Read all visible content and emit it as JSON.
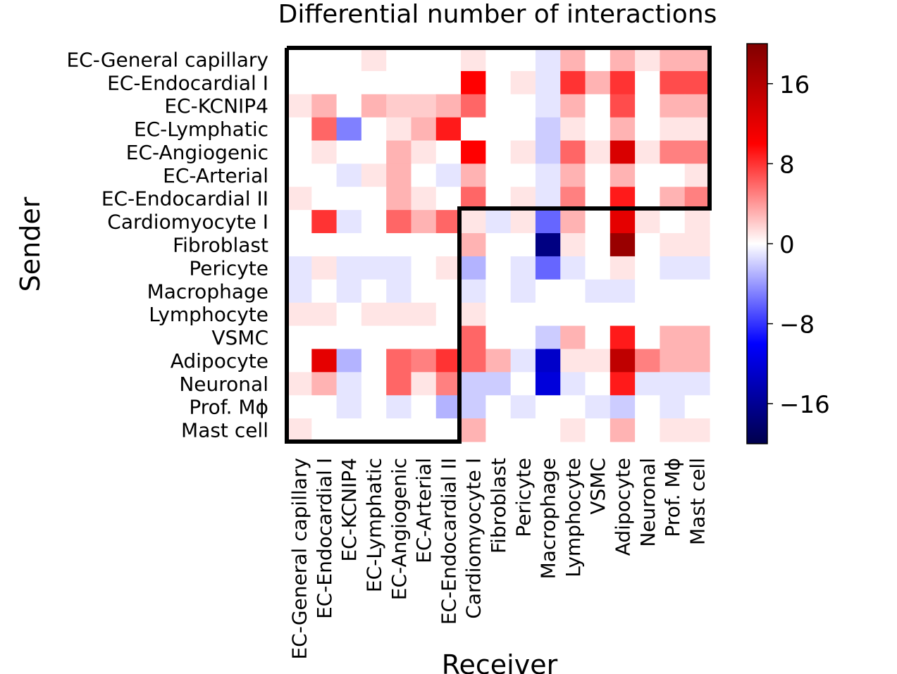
{
  "chart_data": {
    "type": "heatmap",
    "title": "Differential number of interactions",
    "ylabel": "Sender",
    "xlabel": "Receiver",
    "rows": [
      "EC-General capillary",
      "EC-Endocardial I",
      "EC-KCNIP4",
      "EC-Lymphatic",
      "EC-Angiogenic",
      "EC-Arterial",
      "EC-Endocardial II",
      "Cardiomyocyte I",
      "Fibroblast",
      "Pericyte",
      "Macrophage",
      "Lymphocyte",
      "VSMC",
      "Adipocyte",
      "Neuronal",
      "Prof. Mϕ",
      "Mast cell"
    ],
    "columns": [
      "EC-General capillary",
      "EC-Endocardial I",
      "EC-KCNIP4",
      "EC-Lymphatic",
      "EC-Angiogenic",
      "EC-Arterial",
      "EC-Endocardial II",
      "Cardiomyocyte I",
      "Fibroblast",
      "Pericyte",
      "Macrophage",
      "Lymphocyte",
      "VSMC",
      "Adipocyte",
      "Neuronal",
      "Prof. Mϕ",
      "Mast cell"
    ],
    "values": [
      [
        0,
        0,
        0,
        1,
        0,
        0,
        0,
        1,
        0,
        0,
        -1,
        3,
        0,
        3,
        1,
        3,
        3
      ],
      [
        0,
        0,
        0,
        0,
        0,
        0,
        0,
        10,
        0,
        1,
        -1,
        8,
        3,
        8,
        0,
        7,
        7
      ],
      [
        1,
        3,
        0,
        3,
        2,
        2,
        3,
        6,
        0,
        0,
        -1,
        3,
        0,
        7,
        0,
        3,
        3
      ],
      [
        0,
        6,
        -5,
        0,
        1,
        3,
        9,
        0,
        0,
        0,
        -2,
        1,
        0,
        3,
        0,
        1,
        1
      ],
      [
        0,
        1,
        0,
        0,
        3,
        1,
        0,
        10,
        0,
        1,
        -2,
        6,
        1,
        13,
        1,
        5,
        5
      ],
      [
        0,
        0,
        -1,
        1,
        3,
        0,
        -1,
        3,
        0,
        0,
        -1,
        3,
        0,
        3,
        0,
        0,
        1
      ],
      [
        1,
        0,
        0,
        0,
        3,
        1,
        0,
        6,
        0,
        1,
        -1,
        5,
        0,
        9,
        0,
        3,
        5
      ],
      [
        0,
        8,
        -1,
        0,
        6,
        3,
        6,
        1,
        -1,
        1,
        -6,
        3,
        0,
        12,
        1,
        0,
        1
      ],
      [
        0,
        0,
        0,
        0,
        0,
        0,
        0,
        3,
        0,
        0,
        -17,
        1,
        0,
        18,
        0,
        1,
        1
      ],
      [
        -1,
        1,
        -1,
        -1,
        -1,
        0,
        1,
        -3,
        0,
        -1,
        -6,
        -1,
        0,
        1,
        0,
        -1,
        -1
      ],
      [
        -1,
        0,
        -1,
        0,
        -1,
        0,
        0,
        -1,
        0,
        -1,
        0,
        0,
        -1,
        -1,
        0,
        0,
        0
      ],
      [
        1,
        1,
        0,
        1,
        1,
        1,
        0,
        1,
        0,
        0,
        0,
        0,
        0,
        0,
        0,
        0,
        0
      ],
      [
        0,
        0,
        0,
        0,
        0,
        0,
        0,
        6,
        0,
        0,
        -2,
        3,
        0,
        9,
        0,
        3,
        3
      ],
      [
        0,
        12,
        -3,
        0,
        6,
        5,
        8,
        6,
        3,
        -1,
        -13,
        1,
        1,
        15,
        5,
        3,
        3
      ],
      [
        1,
        3,
        -1,
        0,
        6,
        1,
        5,
        -2,
        -2,
        0,
        -12,
        -1,
        0,
        9,
        -1,
        -1,
        -1
      ],
      [
        0,
        0,
        -1,
        0,
        -1,
        0,
        -3,
        -2,
        0,
        -1,
        0,
        0,
        -1,
        -2,
        0,
        -1,
        0
      ],
      [
        1,
        0,
        0,
        0,
        0,
        0,
        0,
        3,
        0,
        0,
        0,
        1,
        0,
        3,
        0,
        1,
        1
      ]
    ],
    "vmin": -20,
    "vmax": 20,
    "colormap": "seismic",
    "colorbar_ticks": [
      16,
      8,
      0,
      -8,
      -16
    ],
    "colorbar_tick_labels": [
      "16",
      "8",
      "0",
      "−8",
      "−16"
    ],
    "highlight_regions": [
      "EC senders to all receivers (upper block)",
      "Non-EC senders to EC receivers (lower-left block)"
    ]
  }
}
